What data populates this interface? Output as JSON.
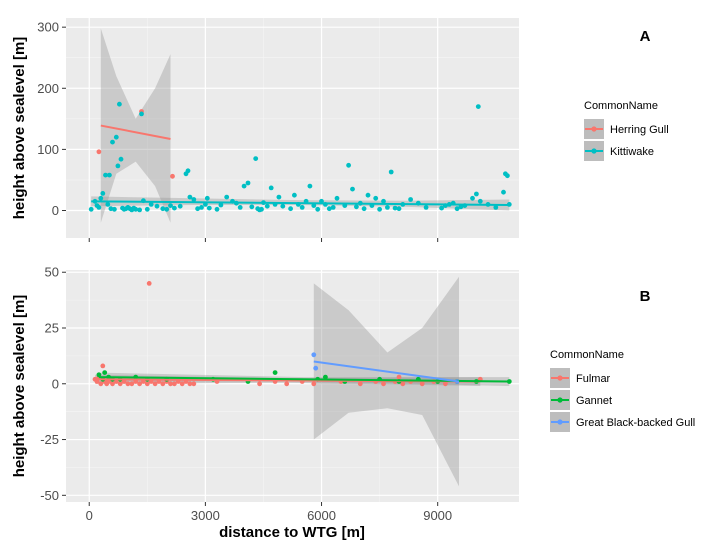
{
  "chart_data": [
    {
      "panel": "A",
      "type": "scatter",
      "xlabel": "",
      "ylabel": "height above sealevel [m]",
      "xlim": [
        -600,
        11100
      ],
      "ylim": [
        -45,
        315
      ],
      "xticks": [
        0,
        3000,
        6000,
        9000
      ],
      "yticks": [
        0,
        100,
        200,
        300
      ],
      "yticklabels": [
        "0",
        "100",
        "200",
        "300"
      ],
      "legend_title": "CommonName",
      "legend_position": "right",
      "series": [
        {
          "name": "Herring Gull",
          "color": "#F8766D",
          "points": [
            [
              250,
              96
            ],
            [
              1350,
              162
            ],
            [
              2150,
              56
            ]
          ],
          "fit": {
            "x0": 300,
            "y0": 139,
            "x1": 2100,
            "y1": 117
          },
          "band": {
            "x": [
              300,
              700,
              1200,
              1700,
              2100
            ],
            "lower": [
              -20,
              60,
              80,
              40,
              -20
            ],
            "upper": [
              298,
              220,
              150,
              200,
              256
            ]
          }
        },
        {
          "name": "Kittiwake",
          "color": "#00BFC4",
          "points": [
            [
              50,
              2
            ],
            [
              150,
              15
            ],
            [
              200,
              8
            ],
            [
              250,
              5
            ],
            [
              300,
              20
            ],
            [
              350,
              28
            ],
            [
              420,
              58
            ],
            [
              480,
              10
            ],
            [
              520,
              58
            ],
            [
              560,
              3
            ],
            [
              600,
              112
            ],
            [
              650,
              2
            ],
            [
              700,
              120
            ],
            [
              740,
              73
            ],
            [
              780,
              174
            ],
            [
              820,
              84
            ],
            [
              860,
              4
            ],
            [
              900,
              2
            ],
            [
              950,
              3
            ],
            [
              1000,
              5
            ],
            [
              1050,
              3
            ],
            [
              1100,
              1
            ],
            [
              1150,
              4
            ],
            [
              1200,
              2
            ],
            [
              1300,
              1
            ],
            [
              1350,
              158
            ],
            [
              1400,
              16
            ],
            [
              1500,
              2
            ],
            [
              1600,
              10
            ],
            [
              1750,
              7
            ],
            [
              1900,
              3
            ],
            [
              2000,
              2
            ],
            [
              2100,
              8
            ],
            [
              2200,
              4
            ],
            [
              2350,
              7
            ],
            [
              2500,
              60
            ],
            [
              2550,
              65
            ],
            [
              2600,
              22
            ],
            [
              2700,
              18
            ],
            [
              2800,
              3
            ],
            [
              2900,
              5
            ],
            [
              3000,
              10
            ],
            [
              3050,
              20
            ],
            [
              3100,
              4
            ],
            [
              3300,
              2
            ],
            [
              3400,
              9
            ],
            [
              3550,
              22
            ],
            [
              3700,
              15
            ],
            [
              3800,
              12
            ],
            [
              3900,
              5
            ],
            [
              4000,
              40
            ],
            [
              4100,
              45
            ],
            [
              4200,
              6
            ],
            [
              4300,
              85
            ],
            [
              4350,
              3
            ],
            [
              4400,
              1
            ],
            [
              4450,
              2
            ],
            [
              4500,
              13
            ],
            [
              4600,
              7
            ],
            [
              4700,
              37
            ],
            [
              4800,
              10
            ],
            [
              4900,
              22
            ],
            [
              5000,
              7
            ],
            [
              5200,
              3
            ],
            [
              5300,
              25
            ],
            [
              5400,
              10
            ],
            [
              5500,
              5
            ],
            [
              5600,
              15
            ],
            [
              5700,
              40
            ],
            [
              5800,
              8
            ],
            [
              5900,
              2
            ],
            [
              6000,
              15
            ],
            [
              6100,
              10
            ],
            [
              6200,
              3
            ],
            [
              6300,
              5
            ],
            [
              6400,
              20
            ],
            [
              6600,
              8
            ],
            [
              6700,
              74
            ],
            [
              6800,
              35
            ],
            [
              6900,
              6
            ],
            [
              7000,
              12
            ],
            [
              7100,
              3
            ],
            [
              7200,
              25
            ],
            [
              7300,
              8
            ],
            [
              7400,
              20
            ],
            [
              7500,
              2
            ],
            [
              7600,
              15
            ],
            [
              7700,
              5
            ],
            [
              7800,
              63
            ],
            [
              7900,
              4
            ],
            [
              8000,
              3
            ],
            [
              8100,
              10
            ],
            [
              8300,
              18
            ],
            [
              8500,
              12
            ],
            [
              8700,
              5
            ],
            [
              9100,
              4
            ],
            [
              9200,
              8
            ],
            [
              9300,
              10
            ],
            [
              9400,
              12
            ],
            [
              9500,
              3
            ],
            [
              9600,
              6
            ],
            [
              9700,
              8
            ],
            [
              9900,
              20
            ],
            [
              10000,
              27
            ],
            [
              10050,
              170
            ],
            [
              10100,
              15
            ],
            [
              10300,
              10
            ],
            [
              10500,
              5
            ],
            [
              10700,
              30
            ],
            [
              10750,
              60
            ],
            [
              10800,
              57
            ],
            [
              10850,
              10
            ]
          ],
          "fit": {
            "x0": 50,
            "y0": 15,
            "x1": 10850,
            "y1": 9
          },
          "band": {
            "x": [
              50,
              2700,
              5450,
              8150,
              10850
            ],
            "lower": [
              7,
              9,
              9,
              6,
              0
            ],
            "upper": [
              23,
              20,
              17,
              16,
              18
            ]
          }
        }
      ]
    },
    {
      "panel": "B",
      "type": "scatter",
      "xlabel": "distance to WTG [m]",
      "ylabel": "height above sealevel [m]",
      "xlim": [
        -600,
        11100
      ],
      "ylim": [
        -53,
        51
      ],
      "xticks": [
        0,
        3000,
        6000,
        9000
      ],
      "xticklabels": [
        "0",
        "3000",
        "6000",
        "9000"
      ],
      "yticks": [
        -50,
        -25,
        0,
        25,
        50
      ],
      "yticklabels": [
        "-50",
        "-25",
        "0",
        "25",
        "50"
      ],
      "legend_title": "CommonName",
      "legend_position": "right",
      "series": [
        {
          "name": "Fulmar",
          "color": "#F8766D",
          "points": [
            [
              150,
              2
            ],
            [
              200,
              1
            ],
            [
              250,
              3
            ],
            [
              300,
              0
            ],
            [
              350,
              8
            ],
            [
              400,
              1
            ],
            [
              450,
              0
            ],
            [
              500,
              1
            ],
            [
              550,
              2
            ],
            [
              600,
              0
            ],
            [
              700,
              1
            ],
            [
              800,
              0
            ],
            [
              900,
              1
            ],
            [
              1000,
              0
            ],
            [
              1100,
              0
            ],
            [
              1200,
              1
            ],
            [
              1300,
              0
            ],
            [
              1400,
              1
            ],
            [
              1500,
              0
            ],
            [
              1550,
              45
            ],
            [
              1600,
              1
            ],
            [
              1700,
              0
            ],
            [
              1800,
              1
            ],
            [
              1900,
              0
            ],
            [
              2000,
              1
            ],
            [
              2100,
              0
            ],
            [
              2200,
              0
            ],
            [
              2300,
              1
            ],
            [
              2400,
              0
            ],
            [
              2500,
              1
            ],
            [
              2600,
              0
            ],
            [
              2700,
              0
            ],
            [
              3300,
              1
            ],
            [
              4400,
              0
            ],
            [
              4800,
              1
            ],
            [
              5100,
              0
            ],
            [
              5500,
              1
            ],
            [
              5800,
              0
            ],
            [
              6500,
              1
            ],
            [
              7000,
              0
            ],
            [
              7400,
              1
            ],
            [
              7600,
              0
            ],
            [
              7900,
              1
            ],
            [
              8000,
              3
            ],
            [
              8100,
              0
            ],
            [
              8300,
              1
            ],
            [
              8600,
              0
            ],
            [
              8900,
              1
            ],
            [
              9200,
              0
            ],
            [
              9500,
              1
            ],
            [
              10100,
              2
            ]
          ],
          "fit": {
            "x0": 150,
            "y0": 2,
            "x1": 10100,
            "y1": 1
          },
          "band": {
            "x": [
              150,
              5100,
              10100
            ],
            "lower": [
              0,
              0.5,
              -1
            ],
            "upper": [
              4,
              2.5,
              3
            ]
          }
        },
        {
          "name": "Gannet",
          "color": "#00BA38",
          "points": [
            [
              250,
              4
            ],
            [
              350,
              2
            ],
            [
              400,
              5
            ],
            [
              500,
              3
            ],
            [
              600,
              2
            ],
            [
              800,
              2
            ],
            [
              1200,
              3
            ],
            [
              1500,
              2
            ],
            [
              2000,
              2
            ],
            [
              3200,
              2
            ],
            [
              4100,
              1
            ],
            [
              4800,
              5
            ],
            [
              5900,
              2
            ],
            [
              6100,
              3
            ],
            [
              6600,
              1
            ],
            [
              7500,
              2
            ],
            [
              8000,
              1
            ],
            [
              8500,
              2
            ],
            [
              9000,
              1
            ],
            [
              9500,
              1
            ],
            [
              10000,
              1
            ],
            [
              10850,
              1
            ]
          ],
          "fit": {
            "x0": 250,
            "y0": 3,
            "x1": 10850,
            "y1": 1
          },
          "band": {
            "x": [
              250,
              5550,
              10850
            ],
            "lower": [
              1,
              1,
              -1
            ],
            "upper": [
              5,
              3,
              3
            ]
          }
        },
        {
          "name": "Great Black-backed Gull",
          "color": "#619CFF",
          "points": [
            [
              5800,
              13
            ],
            [
              5850,
              7
            ],
            [
              9500,
              1
            ]
          ],
          "fit": {
            "x0": 5800,
            "y0": 10,
            "x1": 9550,
            "y1": 1
          },
          "band": {
            "x": [
              5800,
              6700,
              7700,
              8600,
              9550
            ],
            "lower": [
              -25,
              -13,
              -11,
              -14,
              -46
            ],
            "upper": [
              45,
              33,
              14,
              25,
              48
            ]
          }
        }
      ]
    }
  ]
}
